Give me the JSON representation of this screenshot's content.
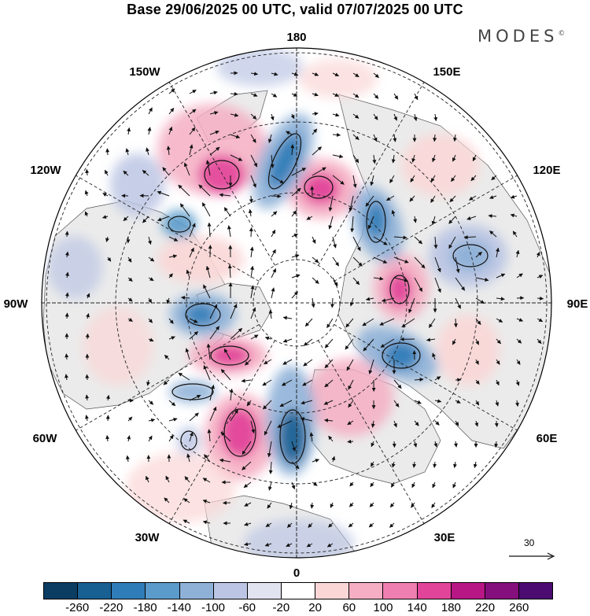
{
  "title": "Base 29/06/2025 00 UTC, valid 07/07/2025 00 UTC",
  "brand": "MODES",
  "brand_mark": "©",
  "map": {
    "projection": "north-polar-stereographic",
    "longitude_labels": {
      "top": "180",
      "top_left": "150W",
      "top_right": "150E",
      "upper_left": "120W",
      "upper_right": "120E",
      "left": "90W",
      "right": "90E",
      "lower_left": "60W",
      "lower_right": "60E",
      "bottom_left": "30W",
      "bottom_right": "30E",
      "bottom": "0"
    },
    "reference_vector_label": "30",
    "colorbar": {
      "tick_labels": [
        "-260",
        "-220",
        "-180",
        "-140",
        "-100",
        "-60",
        "-20",
        "20",
        "60",
        "100",
        "140",
        "180",
        "220",
        "260"
      ],
      "colors": [
        "#0b3d63",
        "#185f92",
        "#2f7db8",
        "#5b9bcb",
        "#8fb1d8",
        "#bcc6e4",
        "#e2e3f0",
        "#ffffff",
        "#fbd6d6",
        "#f5aec3",
        "#ef7fb0",
        "#e2449a",
        "#b81684",
        "#850f7c",
        "#4b0b70"
      ]
    },
    "colors": {
      "continent_fill": "#ebebeb",
      "coastline": "#555555",
      "graticule": "#222222",
      "vector": "#111111"
    }
  }
}
